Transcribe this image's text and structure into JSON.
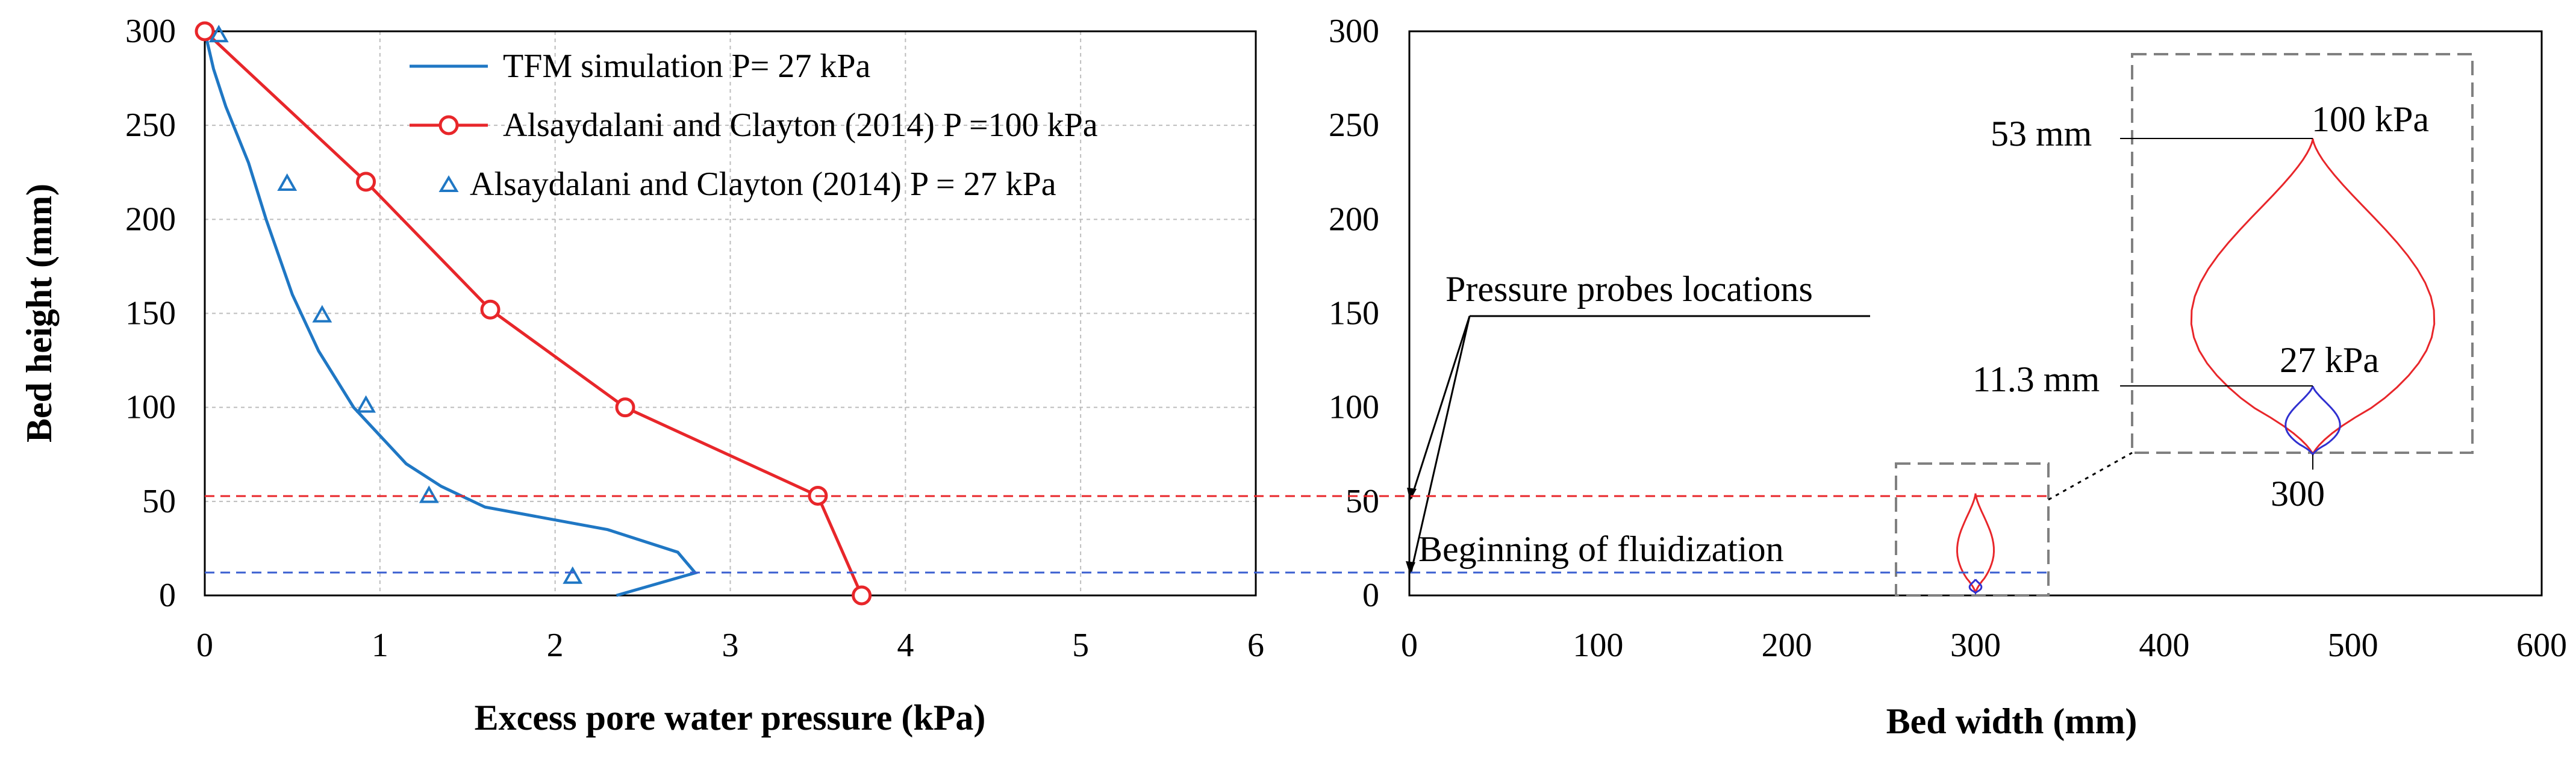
{
  "chart_data": [
    {
      "type": "line",
      "panel": "left",
      "xlabel": "Excess pore water pressure (kPa)",
      "ylabel": "Bed height (mm)",
      "xlim": [
        0,
        6
      ],
      "ylim": [
        0,
        300
      ],
      "xticks": [
        "0",
        "1",
        "2",
        "3",
        "4",
        "5",
        "6"
      ],
      "yticks": [
        "0",
        "50",
        "100",
        "150",
        "200",
        "250",
        "300"
      ],
      "grid": true,
      "legend_position": "top-center",
      "series": [
        {
          "name": "TFM simulation P= 27 kPa",
          "style": "line",
          "color": "#1f77c4",
          "x": [
            2.35,
            2.8,
            2.7,
            2.3,
            1.6,
            1.35,
            1.15,
            1.0,
            0.85,
            0.65,
            0.5,
            0.35,
            0.25,
            0.12,
            0.05,
            0.0
          ],
          "y": [
            0,
            12,
            23,
            35,
            47,
            58,
            70,
            85,
            100,
            130,
            160,
            200,
            230,
            260,
            280,
            300
          ]
        },
        {
          "name": "Alsaydalani and Clayton (2014) P =100 kPa",
          "style": "line-circle",
          "color": "#e8262a",
          "x": [
            3.75,
            3.5,
            2.4,
            1.63,
            0.92,
            0.0
          ],
          "y": [
            0,
            53,
            100,
            152,
            220,
            300
          ]
        },
        {
          "name": "Alsaydalani and Clayton (2014) P = 27 kPa",
          "style": "triangle",
          "color": "#1f77c4",
          "x": [
            2.1,
            1.28,
            0.92,
            0.67,
            0.47,
            0.08
          ],
          "y": [
            10,
            53,
            101,
            149,
            219,
            298
          ]
        }
      ]
    },
    {
      "type": "line",
      "panel": "right",
      "xlabel": "Bed width (mm)",
      "ylabel": "",
      "xlim": [
        0,
        600
      ],
      "ylim": [
        0,
        300
      ],
      "xticks": [
        "0",
        "100",
        "200",
        "300",
        "400",
        "500",
        "600"
      ],
      "yticks": [
        "0",
        "50",
        "100",
        "150",
        "200",
        "250",
        "300"
      ],
      "grid": false,
      "contours": [
        {
          "name": "100 kPa",
          "color": "#e8262a",
          "base_x_mm": 300,
          "height_mm": 53
        },
        {
          "name": "27 kPa",
          "color": "#3030d0",
          "base_x_mm": 300,
          "height_mm": 11.3
        }
      ],
      "annotations": {
        "probes": "Pressure probes locations",
        "beginning": "Beginning of fluidization",
        "label_53": "53 mm",
        "label_11": "11.3 mm",
        "label_100kpa": "100 kPa",
        "label_27kpa": "27 kPa",
        "label_300": "300"
      },
      "reference_lines": [
        {
          "y_mm": 53,
          "color": "#e8262a"
        },
        {
          "y_mm": 11,
          "color": "#3a5fd0"
        }
      ]
    }
  ]
}
